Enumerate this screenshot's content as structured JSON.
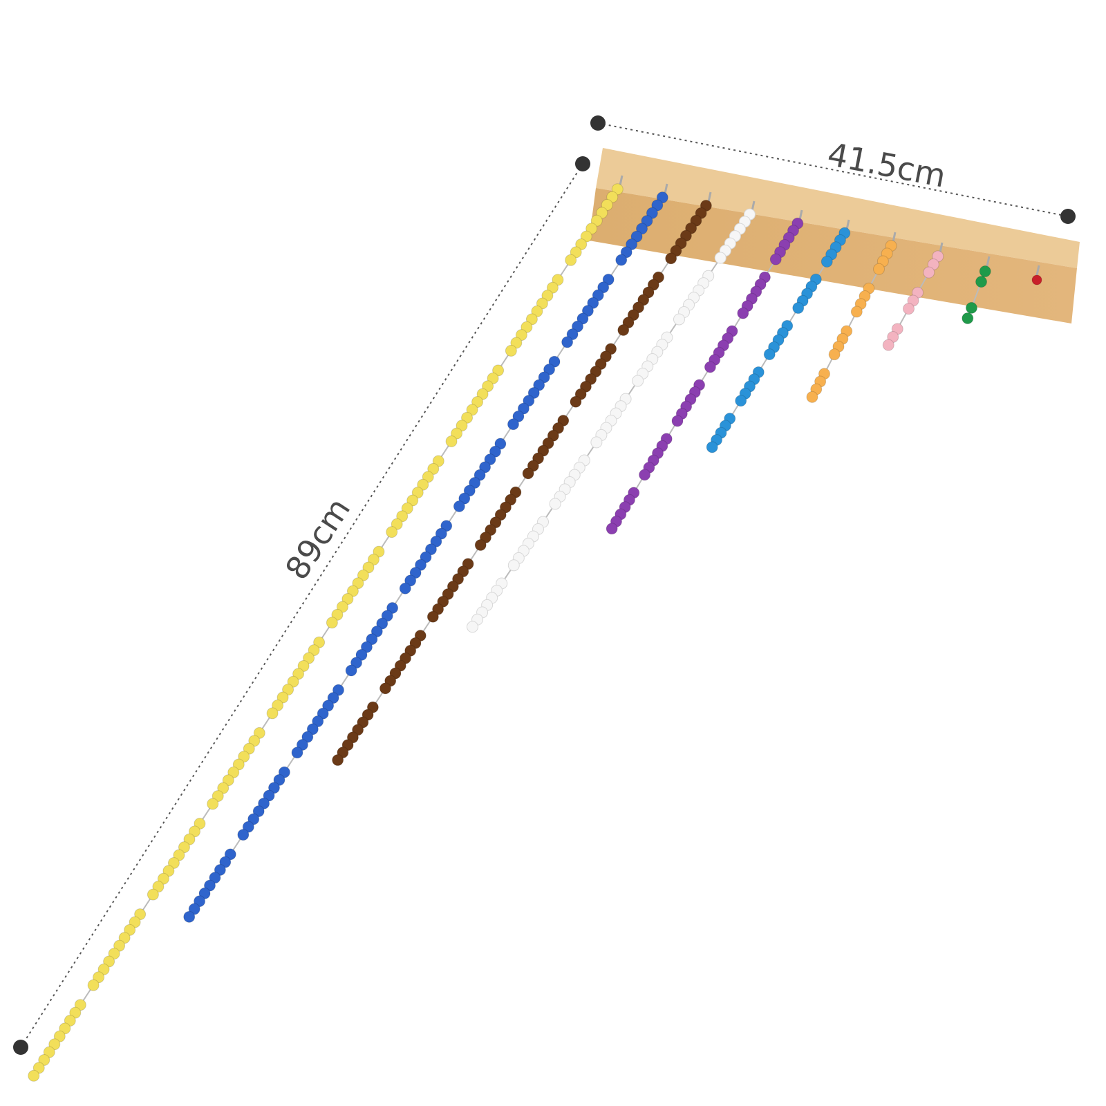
{
  "dimensions": {
    "width_label": "41.5cm",
    "length_label": "89cm"
  },
  "bead_chains": [
    {
      "color": "#f2df5a",
      "squares": 10
    },
    {
      "color": "#2f64cc",
      "squares": 9
    },
    {
      "color": "#6b3a17",
      "squares": 8
    },
    {
      "color": "#f6f6f6",
      "squares": 7
    },
    {
      "color": "#8b3fb0",
      "squares": 6
    },
    {
      "color": "#2a92d8",
      "squares": 5
    },
    {
      "color": "#f7b04f",
      "squares": 4
    },
    {
      "color": "#f3b3c0",
      "squares": 3
    },
    {
      "color": "#1f9a4a",
      "squares": 2
    },
    {
      "color": "#c8202a",
      "squares": 1
    }
  ],
  "colors": {
    "wood_top": "#e8c08a",
    "wood_front": "#d9a86a",
    "dimension": "#333333"
  }
}
